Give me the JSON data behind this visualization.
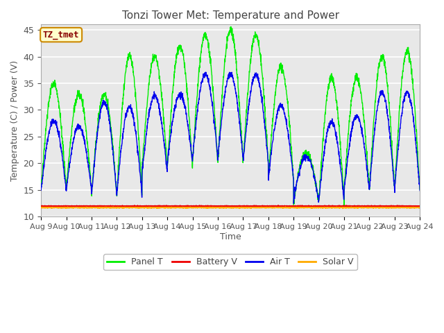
{
  "title": "Tonzi Tower Met: Temperature and Power",
  "xlabel": "Time",
  "ylabel": "Temperature (C) / Power (V)",
  "ylim": [
    10,
    46
  ],
  "yticks": [
    10,
    15,
    20,
    25,
    30,
    35,
    40,
    45
  ],
  "xtick_labels": [
    "Aug 9",
    "Aug 10",
    "Aug 11",
    "Aug 12",
    "Aug 13",
    "Aug 14",
    "Aug 15",
    "Aug 16",
    "Aug 17",
    "Aug 18",
    "Aug 19",
    "Aug 20",
    "Aug 21",
    "Aug 22",
    "Aug 23",
    "Aug 24"
  ],
  "fig_bg": "#ffffff",
  "plot_bg": "#e8e8e8",
  "grid_color": "#ffffff",
  "panel_t_color": "#00ee00",
  "air_t_color": "#0000ee",
  "battery_v_color": "#ee0000",
  "solar_v_color": "#ffaa00",
  "label_box_facecolor": "#ffffcc",
  "label_box_edgecolor": "#cc8800",
  "label_text": "TZ_tmet",
  "label_text_color": "#880000",
  "battery_v_level": 12.0,
  "solar_v_level": 11.7
}
